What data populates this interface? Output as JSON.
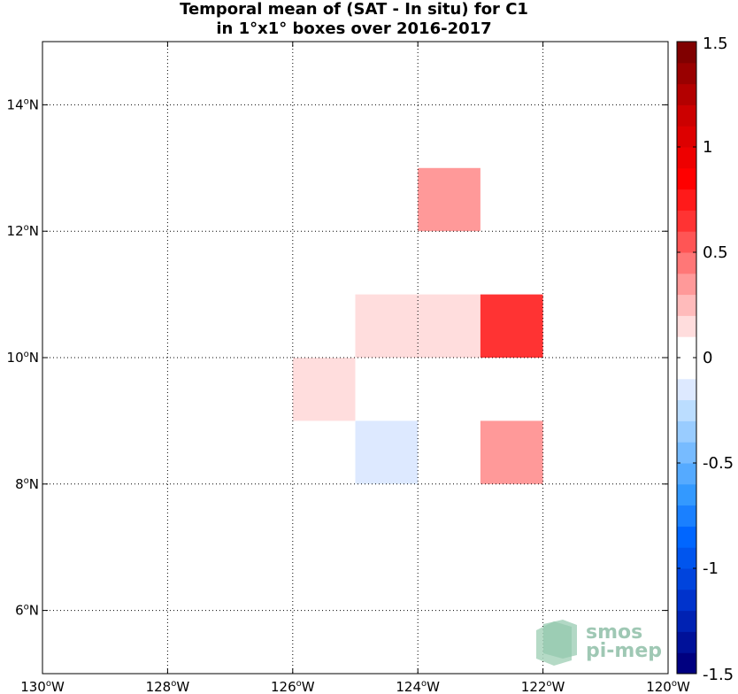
{
  "chart_data": {
    "type": "heatmap",
    "title": "Temporal mean of (SAT - In situ) for C1",
    "subtitle": "in 1°x1° boxes over 2016-2017",
    "x_ticks": [
      {
        "value": -130,
        "label": "130",
        "suffix": "W"
      },
      {
        "value": -128,
        "label": "128",
        "suffix": "W"
      },
      {
        "value": -126,
        "label": "126",
        "suffix": "W"
      },
      {
        "value": -124,
        "label": "124",
        "suffix": "W"
      },
      {
        "value": -122,
        "label": "122",
        "suffix": "W"
      },
      {
        "value": -120,
        "label": "120",
        "suffix": "W"
      }
    ],
    "y_ticks": [
      {
        "value": 6,
        "label": "6",
        "suffix": "N"
      },
      {
        "value": 8,
        "label": "8",
        "suffix": "N"
      },
      {
        "value": 10,
        "label": "10",
        "suffix": "N"
      },
      {
        "value": 12,
        "label": "12",
        "suffix": "N"
      },
      {
        "value": 14,
        "label": "14",
        "suffix": "N"
      }
    ],
    "xlim": [
      -130,
      -120
    ],
    "ylim": [
      5,
      15
    ],
    "grid": true,
    "cells": [
      {
        "lon_min": -124,
        "lon_max": -123,
        "lat_min": 12,
        "lat_max": 13,
        "value": 0.3
      },
      {
        "lon_min": -125,
        "lon_max": -124,
        "lat_min": 10,
        "lat_max": 11,
        "value": 0.15
      },
      {
        "lon_min": -124,
        "lon_max": -123,
        "lat_min": 10,
        "lat_max": 11,
        "value": 0.15
      },
      {
        "lon_min": -123,
        "lon_max": -122,
        "lat_min": 10,
        "lat_max": 11,
        "value": 0.6
      },
      {
        "lon_min": -126,
        "lon_max": -125,
        "lat_min": 9,
        "lat_max": 10,
        "value": 0.15
      },
      {
        "lon_min": -125,
        "lon_max": -124,
        "lat_min": 8,
        "lat_max": 9,
        "value": -0.15
      },
      {
        "lon_min": -123,
        "lon_max": -122,
        "lat_min": 8,
        "lat_max": 9,
        "value": 0.3
      }
    ],
    "colorbar": {
      "range": [
        -1.5,
        1.5
      ],
      "ticks": [
        "1.5",
        "1",
        "0.5",
        "0",
        "-0.5",
        "-1",
        "-1.5"
      ],
      "colors": [
        "#000080",
        "#001199",
        "#0022b3",
        "#0033cc",
        "#0044dd",
        "#0055ee",
        "#0066ff",
        "#1a80ff",
        "#3399ff",
        "#55aaff",
        "#77bbff",
        "#99ccff",
        "#bbddff",
        "#dde9ff",
        "#ffffff",
        "#ffffff",
        "#ffdddd",
        "#ffbbbb",
        "#ff9999",
        "#ff7777",
        "#ff5555",
        "#ff3333",
        "#ff1a1a",
        "#ff0000",
        "#ee0000",
        "#dd0000",
        "#cc0000",
        "#b30000",
        "#990000",
        "#800000"
      ]
    }
  },
  "logo": {
    "line1": "smos",
    "line2": "pi-mep"
  }
}
